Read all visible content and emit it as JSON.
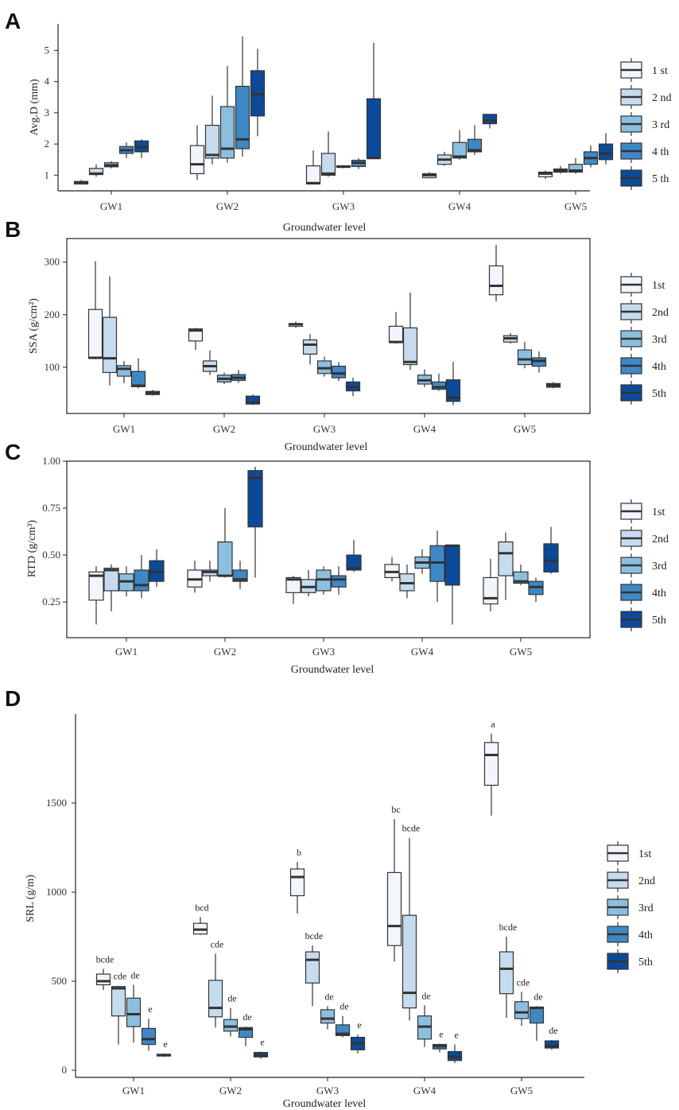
{
  "colors": [
    "#f2f5fc",
    "#c6dbee",
    "#8cbedf",
    "#3f88c6",
    "#0c4a99"
  ],
  "chart_data": [
    {
      "type": "box",
      "panel": "A",
      "xlabel": "Groundwater level",
      "ylabel": "Avg.D (mm)",
      "ylim": [
        0.5,
        5.8
      ],
      "yticks": [
        1,
        2,
        3,
        4,
        5
      ],
      "ytick_labels": [
        "1",
        "2",
        "3",
        "4",
        "5"
      ],
      "categories": [
        "GW1",
        "GW2",
        "GW3",
        "GW4",
        "GW5"
      ],
      "legend": [
        "1 st",
        "2 nd",
        "3 rd",
        "4 th",
        "5 th"
      ],
      "groups": [
        [
          [
            0.7,
            0.72,
            0.77,
            0.8,
            0.85
          ],
          [
            0.95,
            1.02,
            1.05,
            1.22,
            1.35
          ],
          [
            1.22,
            1.27,
            1.32,
            1.4,
            1.45
          ],
          [
            1.55,
            1.7,
            1.8,
            1.92,
            2.05
          ],
          [
            1.55,
            1.75,
            1.9,
            2.1,
            2.15
          ]
        ],
        [
          [
            0.85,
            1.05,
            1.35,
            1.95,
            2.6
          ],
          [
            1.35,
            1.55,
            1.65,
            2.6,
            3.55
          ],
          [
            1.4,
            1.55,
            1.85,
            3.2,
            4.5
          ],
          [
            1.6,
            1.85,
            2.15,
            3.85,
            5.45
          ],
          [
            2.25,
            2.9,
            3.6,
            4.35,
            5.05
          ]
        ],
        [
          [
            0.7,
            0.72,
            0.75,
            1.3,
            1.8
          ],
          [
            0.95,
            1.0,
            1.05,
            1.7,
            2.4
          ],
          [
            1.22,
            1.25,
            1.28,
            1.3,
            1.32
          ],
          [
            1.2,
            1.28,
            1.4,
            1.48,
            1.55
          ],
          [
            1.55,
            1.55,
            1.55,
            3.45,
            5.25
          ]
        ],
        [
          [
            0.9,
            0.92,
            1.0,
            1.05,
            1.1
          ],
          [
            1.3,
            1.35,
            1.5,
            1.65,
            1.75
          ],
          [
            1.5,
            1.55,
            1.6,
            2.05,
            2.45
          ],
          [
            1.65,
            1.75,
            1.8,
            2.15,
            2.6
          ],
          [
            2.5,
            2.65,
            2.75,
            2.95,
            2.95
          ]
        ],
        [
          [
            0.88,
            0.95,
            1.05,
            1.1,
            1.15
          ],
          [
            1.05,
            1.1,
            1.15,
            1.2,
            1.3
          ],
          [
            1.05,
            1.1,
            1.15,
            1.35,
            1.55
          ],
          [
            1.25,
            1.35,
            1.55,
            1.75,
            1.95
          ],
          [
            1.35,
            1.5,
            1.7,
            2.0,
            2.35
          ]
        ]
      ],
      "annotations": []
    },
    {
      "type": "box",
      "panel": "B",
      "xlabel": "Groundwater level",
      "ylabel": "SSA (g/cm²)",
      "ylim": [
        12,
        345
      ],
      "yticks": [
        100,
        200,
        300
      ],
      "ytick_labels": [
        "100",
        "200",
        "300"
      ],
      "categories": [
        "GW1",
        "GW2",
        "GW3",
        "GW4",
        "GW5"
      ],
      "legend": [
        "1st",
        "2nd",
        "3rd",
        "4th",
        "5th"
      ],
      "groups": [
        [
          [
            115,
            117,
            118,
            210,
            302
          ],
          [
            65,
            90,
            117,
            195,
            273
          ],
          [
            70,
            83,
            97,
            103,
            112
          ],
          [
            60,
            63,
            65,
            92,
            117
          ],
          [
            46,
            48,
            51,
            54,
            57
          ]
        ],
        [
          [
            133,
            150,
            170,
            173,
            175
          ],
          [
            85,
            92,
            102,
            112,
            132
          ],
          [
            68,
            72,
            78,
            85,
            90
          ],
          [
            70,
            75,
            80,
            86,
            95
          ],
          [
            28,
            30,
            32,
            45,
            48
          ]
        ],
        [
          [
            175,
            178,
            182,
            183,
            187
          ],
          [
            105,
            125,
            143,
            152,
            163
          ],
          [
            82,
            88,
            98,
            112,
            120
          ],
          [
            74,
            80,
            88,
            102,
            110
          ],
          [
            45,
            55,
            62,
            72,
            80
          ]
        ],
        [
          [
            145,
            147,
            148,
            178,
            205
          ],
          [
            95,
            105,
            110,
            175,
            242
          ],
          [
            62,
            68,
            75,
            85,
            96
          ],
          [
            55,
            58,
            62,
            72,
            88
          ],
          [
            28,
            35,
            42,
            76,
            110
          ]
        ],
        [
          [
            225,
            238,
            255,
            293,
            333
          ],
          [
            145,
            148,
            155,
            160,
            165
          ],
          [
            98,
            105,
            115,
            133,
            148
          ],
          [
            90,
            102,
            112,
            118,
            130
          ],
          [
            60,
            62,
            66,
            69,
            72
          ]
        ]
      ],
      "annotations": []
    },
    {
      "type": "box",
      "panel": "C",
      "xlabel": "Groundwater level",
      "ylabel": "RTD (g/cm³)",
      "ylim": [
        0.06,
        1.0
      ],
      "yticks": [
        0.25,
        0.5,
        0.75,
        1.0
      ],
      "ytick_labels": [
        "0.25",
        "0.50",
        "0.75",
        "1.00"
      ],
      "categories": [
        "GW1",
        "GW2",
        "GW3",
        "GW4",
        "GW5"
      ],
      "legend": [
        "1st",
        "2nd",
        "3rd",
        "4th",
        "5th"
      ],
      "groups": [
        [
          [
            0.13,
            0.26,
            0.39,
            0.41,
            0.44
          ],
          [
            0.2,
            0.31,
            0.42,
            0.43,
            0.45
          ],
          [
            0.28,
            0.31,
            0.36,
            0.4,
            0.44
          ],
          [
            0.27,
            0.31,
            0.34,
            0.42,
            0.5
          ],
          [
            0.33,
            0.36,
            0.41,
            0.47,
            0.53
          ]
        ],
        [
          [
            0.3,
            0.33,
            0.37,
            0.42,
            0.47
          ],
          [
            0.36,
            0.39,
            0.41,
            0.42,
            0.47
          ],
          [
            0.38,
            0.39,
            0.39,
            0.57,
            0.75
          ],
          [
            0.32,
            0.36,
            0.37,
            0.42,
            0.47
          ],
          [
            0.38,
            0.65,
            0.91,
            0.95,
            0.97
          ]
        ],
        [
          [
            0.24,
            0.3,
            0.37,
            0.38,
            0.39
          ],
          [
            0.28,
            0.3,
            0.33,
            0.37,
            0.42
          ],
          [
            0.29,
            0.31,
            0.37,
            0.42,
            0.44
          ],
          [
            0.29,
            0.33,
            0.37,
            0.39,
            0.44
          ],
          [
            0.41,
            0.42,
            0.43,
            0.5,
            0.58
          ]
        ],
        [
          [
            0.36,
            0.38,
            0.41,
            0.45,
            0.49
          ],
          [
            0.27,
            0.31,
            0.35,
            0.4,
            0.45
          ],
          [
            0.4,
            0.43,
            0.46,
            0.49,
            0.53
          ],
          [
            0.25,
            0.36,
            0.46,
            0.55,
            0.63
          ],
          [
            0.13,
            0.34,
            0.55,
            0.55,
            0.55
          ]
        ],
        [
          [
            0.2,
            0.24,
            0.27,
            0.38,
            0.48
          ],
          [
            0.26,
            0.39,
            0.51,
            0.57,
            0.62
          ],
          [
            0.34,
            0.35,
            0.36,
            0.41,
            0.45
          ],
          [
            0.25,
            0.29,
            0.33,
            0.36,
            0.38
          ],
          [
            0.4,
            0.41,
            0.47,
            0.56,
            0.65
          ]
        ]
      ],
      "annotations": []
    },
    {
      "type": "box",
      "panel": "D",
      "xlabel": "Groundwater level",
      "ylabel": "SRL (g/m)",
      "ylim": [
        -40,
        2000
      ],
      "yticks": [
        0,
        500,
        1000,
        1500
      ],
      "ytick_labels": [
        "0",
        "500",
        "1000",
        "1500"
      ],
      "categories": [
        "GW1",
        "GW2",
        "GW3",
        "GW4",
        "GW5"
      ],
      "legend": [
        "1st",
        "2nd",
        "3rd",
        "4th",
        "5th"
      ],
      "groups": [
        [
          [
            450,
            480,
            500,
            540,
            570
          ],
          [
            145,
            305,
            460,
            470,
            475
          ],
          [
            155,
            245,
            315,
            405,
            480
          ],
          [
            110,
            145,
            175,
            235,
            290
          ],
          [
            75,
            80,
            85,
            90,
            95
          ]
        ],
        [
          [
            760,
            765,
            790,
            825,
            860
          ],
          [
            240,
            300,
            350,
            505,
            655
          ],
          [
            190,
            220,
            245,
            285,
            350
          ],
          [
            135,
            185,
            230,
            240,
            245
          ],
          [
            65,
            75,
            85,
            100,
            105
          ]
        ],
        [
          [
            880,
            980,
            1085,
            1130,
            1170
          ],
          [
            360,
            490,
            620,
            665,
            700
          ],
          [
            230,
            265,
            290,
            340,
            360
          ],
          [
            185,
            195,
            205,
            255,
            305
          ],
          [
            95,
            115,
            150,
            185,
            200
          ]
        ],
        [
          [
            610,
            700,
            810,
            1110,
            1410
          ],
          [
            280,
            350,
            435,
            870,
            1305
          ],
          [
            130,
            175,
            245,
            305,
            365
          ],
          [
            100,
            120,
            135,
            145,
            150
          ],
          [
            40,
            55,
            75,
            105,
            145
          ]
        ],
        [
          [
            1430,
            1600,
            1770,
            1840,
            1890
          ],
          [
            295,
            430,
            570,
            665,
            750
          ],
          [
            250,
            290,
            325,
            385,
            440
          ],
          [
            165,
            265,
            350,
            355,
            360
          ],
          [
            115,
            125,
            135,
            165,
            170
          ]
        ]
      ],
      "annotations": [
        [
          "bcde",
          "cde",
          "de",
          "e",
          "e"
        ],
        [
          "bcd",
          "cde",
          "de",
          "de",
          "e"
        ],
        [
          "b",
          "bcde",
          "de",
          "de",
          "e"
        ],
        [
          "bc",
          "bcde",
          "de",
          "e",
          "e"
        ],
        [
          "a",
          "bcde",
          "cde",
          "de",
          "de"
        ]
      ]
    }
  ]
}
